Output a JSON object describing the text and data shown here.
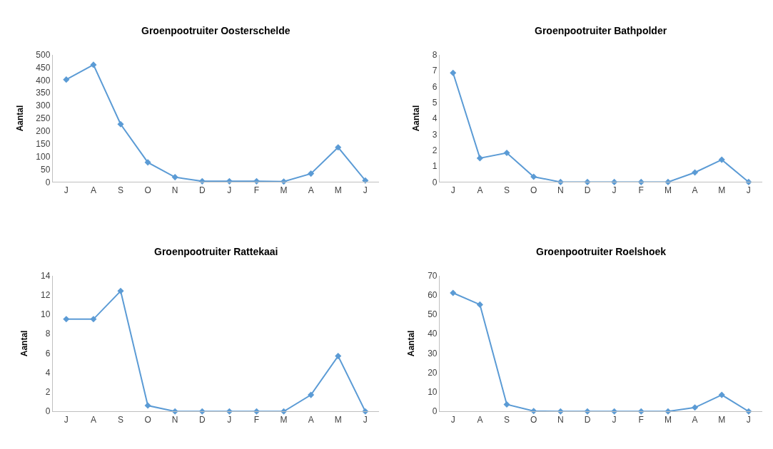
{
  "chart_data": [
    {
      "type": "line",
      "title": "Groenpootruiter Oosterschelde",
      "ylabel": "Aantal",
      "categories": [
        "J",
        "A",
        "S",
        "O",
        "N",
        "D",
        "J",
        "F",
        "M",
        "A",
        "M",
        "J"
      ],
      "series": [
        {
          "color": "#5b9bd5",
          "values": [
            402,
            460,
            227,
            77,
            19,
            3,
            3,
            3,
            2,
            33,
            136,
            6
          ]
        }
      ],
      "ylim": [
        0,
        500
      ],
      "yticks": [
        0,
        50,
        100,
        150,
        200,
        250,
        300,
        350,
        400,
        450,
        500
      ],
      "grid": false,
      "marker": "diamond",
      "line_style": "solid"
    },
    {
      "type": "line",
      "title": "Groenpootruiter Bathpolder",
      "ylabel": "Aantal",
      "categories": [
        "J",
        "A",
        "S",
        "O",
        "N",
        "D",
        "J",
        "F",
        "M",
        "A",
        "M",
        "J"
      ],
      "series": [
        {
          "color": "#5b9bd5",
          "values": [
            6.85,
            1.5,
            1.83,
            0.33,
            0,
            0,
            0,
            0,
            0,
            0.6,
            1.4,
            0
          ]
        }
      ],
      "ylim": [
        0,
        8
      ],
      "yticks": [
        0,
        1,
        2,
        3,
        4,
        5,
        6,
        7,
        8
      ],
      "grid": false,
      "marker": "diamond",
      "line_style": "solid"
    },
    {
      "type": "line",
      "title": "Groenpootruiter Rattekaai",
      "ylabel": "Aantal",
      "categories": [
        "J",
        "A",
        "S",
        "O",
        "N",
        "D",
        "J",
        "F",
        "M",
        "A",
        "M",
        "J"
      ],
      "series": [
        {
          "color": "#5b9bd5",
          "values": [
            9.5,
            9.5,
            12.4,
            0.6,
            0,
            0,
            0,
            0,
            0,
            1.7,
            5.7,
            0
          ]
        }
      ],
      "ylim": [
        0,
        14
      ],
      "yticks": [
        0,
        2,
        4,
        6,
        8,
        10,
        12,
        14
      ],
      "grid": false,
      "marker": "diamond",
      "line_style": "solid"
    },
    {
      "type": "line",
      "title": "Groenpootruiter Roelshoek",
      "ylabel": "Aantal",
      "categories": [
        "J",
        "A",
        "S",
        "O",
        "N",
        "D",
        "J",
        "F",
        "M",
        "A",
        "M",
        "J"
      ],
      "series": [
        {
          "color": "#5b9bd5",
          "values": [
            61,
            55,
            3.6,
            0.2,
            0,
            0,
            0,
            0,
            0,
            2,
            8.5,
            0
          ]
        }
      ],
      "ylim": [
        0,
        70
      ],
      "yticks": [
        0,
        10,
        20,
        30,
        40,
        50,
        60,
        70
      ],
      "grid": false,
      "marker": "diamond",
      "line_style": "solid"
    }
  ]
}
